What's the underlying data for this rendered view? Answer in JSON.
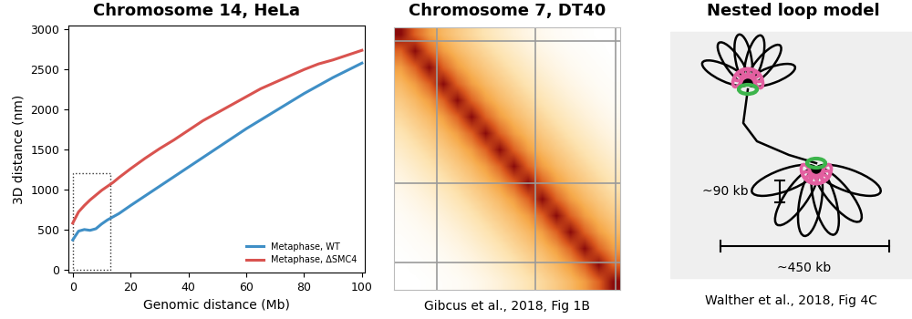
{
  "chart_data": [
    {
      "type": "line",
      "title": "Chromosome 14, HeLa",
      "x_label": "Genomic distance (Mb)",
      "y_label": "3D distance (nm)",
      "x": [
        0,
        2,
        4,
        6,
        8,
        10,
        12,
        14,
        16,
        20,
        25,
        30,
        35,
        40,
        45,
        50,
        55,
        60,
        65,
        70,
        75,
        80,
        85,
        90,
        95,
        100
      ],
      "series": [
        {
          "name": "Metaphase, WT",
          "color": "#3f8fc6",
          "line_style": "solid",
          "values": [
            370,
            480,
            500,
            490,
            510,
            570,
            620,
            660,
            700,
            800,
            920,
            1040,
            1160,
            1280,
            1400,
            1520,
            1640,
            1760,
            1870,
            1980,
            2090,
            2200,
            2300,
            2400,
            2490,
            2580
          ]
        },
        {
          "name": "Metaphase, ΔSMC4",
          "color": "#d9534f",
          "line_style": "solid",
          "values": [
            580,
            720,
            800,
            870,
            930,
            990,
            1040,
            1090,
            1150,
            1260,
            1390,
            1510,
            1620,
            1740,
            1860,
            1960,
            2060,
            2160,
            2260,
            2340,
            2420,
            2500,
            2570,
            2620,
            2680,
            2740
          ]
        }
      ],
      "xlim": [
        -1.5,
        101
      ],
      "xticks": [
        0,
        20,
        40,
        60,
        80,
        100
      ],
      "ylim": [
        -40,
        3050
      ],
      "yticks": [
        0,
        500,
        1000,
        1500,
        2000,
        2500,
        3000
      ],
      "grid": false,
      "legend": "lower right",
      "box": {
        "x": [
          0,
          13
        ],
        "y": [
          0,
          1200
        ]
      }
    },
    {
      "type": "heatmap",
      "title": "Chromosome 7, DT40",
      "caption": "Gibcus et al., 2018, Fig 1B",
      "cells": [
        [
          1.0,
          0.72,
          0.55,
          0.45,
          0.38,
          0.32,
          0.26,
          0.2,
          0.15,
          0.11,
          0.08,
          0.06,
          0.05,
          0.04,
          0.03,
          0.03
        ],
        [
          0.72,
          1.0,
          0.72,
          0.55,
          0.45,
          0.38,
          0.32,
          0.26,
          0.2,
          0.15,
          0.11,
          0.08,
          0.06,
          0.05,
          0.04,
          0.03
        ],
        [
          0.55,
          0.72,
          1.0,
          0.72,
          0.55,
          0.45,
          0.38,
          0.32,
          0.26,
          0.2,
          0.15,
          0.11,
          0.08,
          0.06,
          0.05,
          0.04
        ],
        [
          0.45,
          0.55,
          0.72,
          1.0,
          0.72,
          0.55,
          0.45,
          0.38,
          0.32,
          0.26,
          0.2,
          0.15,
          0.11,
          0.08,
          0.06,
          0.05
        ],
        [
          0.38,
          0.45,
          0.55,
          0.72,
          1.0,
          0.72,
          0.55,
          0.45,
          0.38,
          0.32,
          0.26,
          0.2,
          0.15,
          0.11,
          0.08,
          0.06
        ],
        [
          0.32,
          0.38,
          0.45,
          0.55,
          0.72,
          1.0,
          0.72,
          0.55,
          0.45,
          0.38,
          0.32,
          0.26,
          0.2,
          0.15,
          0.11,
          0.08
        ],
        [
          0.26,
          0.32,
          0.38,
          0.45,
          0.55,
          0.72,
          1.0,
          0.72,
          0.55,
          0.45,
          0.38,
          0.32,
          0.26,
          0.2,
          0.15,
          0.11
        ],
        [
          0.2,
          0.26,
          0.32,
          0.38,
          0.45,
          0.55,
          0.72,
          1.0,
          0.72,
          0.55,
          0.45,
          0.38,
          0.32,
          0.26,
          0.2,
          0.15
        ],
        [
          0.15,
          0.2,
          0.26,
          0.32,
          0.38,
          0.45,
          0.55,
          0.72,
          1.0,
          0.72,
          0.55,
          0.45,
          0.38,
          0.32,
          0.26,
          0.2
        ],
        [
          0.11,
          0.15,
          0.2,
          0.26,
          0.32,
          0.38,
          0.45,
          0.55,
          0.72,
          1.0,
          0.72,
          0.55,
          0.45,
          0.38,
          0.32,
          0.26
        ],
        [
          0.08,
          0.11,
          0.15,
          0.2,
          0.26,
          0.32,
          0.38,
          0.45,
          0.55,
          0.72,
          1.0,
          0.72,
          0.55,
          0.45,
          0.38,
          0.32
        ],
        [
          0.06,
          0.08,
          0.11,
          0.15,
          0.2,
          0.26,
          0.32,
          0.38,
          0.45,
          0.55,
          0.72,
          1.0,
          0.72,
          0.55,
          0.45,
          0.38
        ],
        [
          0.05,
          0.06,
          0.08,
          0.11,
          0.15,
          0.2,
          0.26,
          0.32,
          0.38,
          0.45,
          0.55,
          0.72,
          1.0,
          0.72,
          0.55,
          0.45
        ],
        [
          0.04,
          0.05,
          0.06,
          0.08,
          0.11,
          0.15,
          0.2,
          0.26,
          0.32,
          0.38,
          0.45,
          0.55,
          0.72,
          1.0,
          0.72,
          0.55
        ],
        [
          0.03,
          0.04,
          0.05,
          0.06,
          0.08,
          0.11,
          0.15,
          0.2,
          0.26,
          0.32,
          0.38,
          0.45,
          0.55,
          0.72,
          1.0,
          0.72
        ],
        [
          0.03,
          0.03,
          0.04,
          0.05,
          0.06,
          0.08,
          0.11,
          0.15,
          0.2,
          0.26,
          0.32,
          0.38,
          0.45,
          0.55,
          0.72,
          1.0
        ]
      ],
      "xlim": [
        0,
        16
      ],
      "ylim": [
        16,
        0
      ],
      "xticks": [
        3.0,
        10.0,
        15.7
      ],
      "yticks": [
        0.8,
        9.5,
        14.3
      ],
      "grid": true,
      "tick_labels": false
    }
  ],
  "diagram": {
    "title": "Nested loop model",
    "caption": "Walther et al., 2018, Fig 4C",
    "loop_label": "~90 kb",
    "rosette_label": "~450 kb"
  }
}
